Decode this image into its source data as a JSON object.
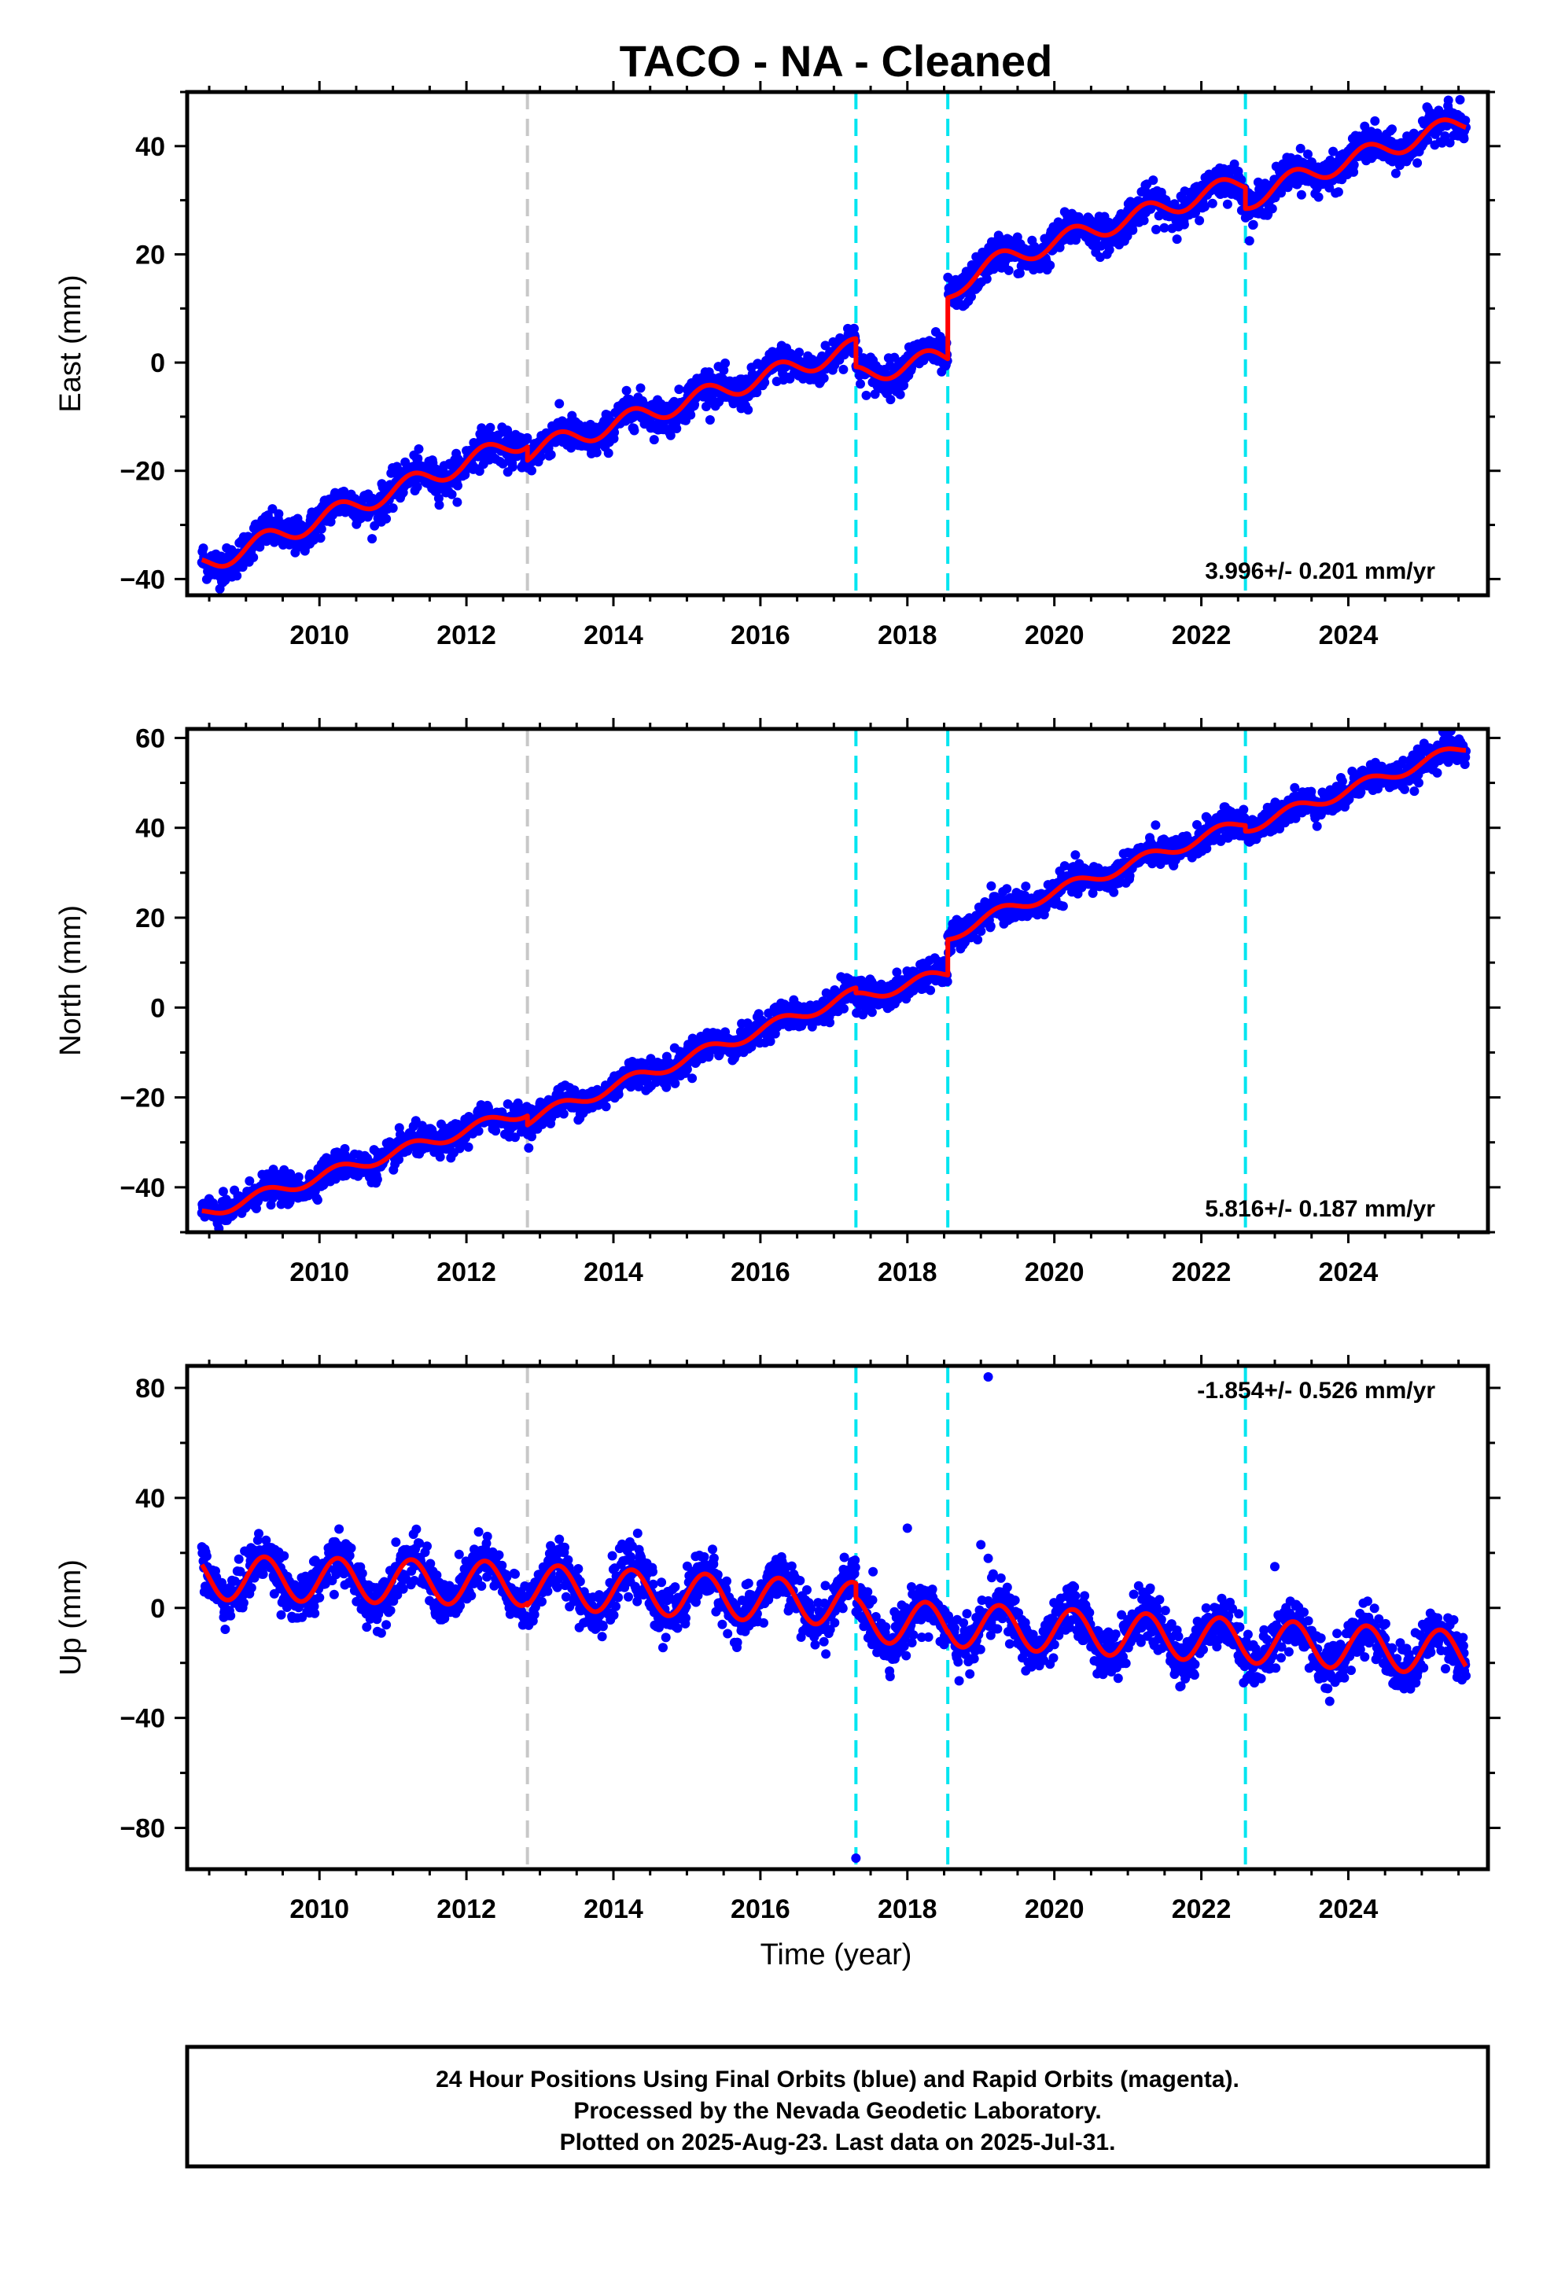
{
  "title": "TACO  - NA - Cleaned",
  "colors": {
    "final": "#0000ff",
    "model": "#ff0000",
    "cyan": "#00e5f0",
    "gray": "#c8c8c8"
  },
  "chart_data": [
    {
      "type": "scatter",
      "ylabel": "East (mm)",
      "xlabel": "",
      "xlim": [
        2008.2,
        2025.9
      ],
      "ylim": [
        -43,
        50
      ],
      "xticks": [
        2010,
        2012,
        2014,
        2016,
        2018,
        2020,
        2022,
        2024
      ],
      "xtick_labels": [
        "2010",
        "2012",
        "2014",
        "2016",
        "2018",
        "2020",
        "2022",
        "2024"
      ],
      "yticks": [
        -40,
        -20,
        0,
        20,
        40
      ],
      "ytick_labels": [
        "−40",
        "−20",
        "0",
        "20",
        "40"
      ],
      "rate_label": "3.996+/- 0.201 mm/yr",
      "rate_position": "bottom-right",
      "gray_lines": [
        2012.83
      ],
      "cyan_lines": [
        2017.3,
        2018.55,
        2022.6
      ],
      "model": {
        "color": "#ff0000",
        "breaks": [
          2012.83,
          2017.3,
          2018.55,
          2022.6
        ],
        "segments": [
          {
            "from": 2008.4,
            "to": 2012.83,
            "anchor": 2008.4,
            "value": -37.5,
            "rate": 5.3,
            "annual": 1.8,
            "phase": 0.0,
            "decay": 0
          },
          {
            "from": 2012.83,
            "to": 2017.3,
            "anchor": 2012.83,
            "value": -16.5,
            "rate": 4.3,
            "annual": 1.8,
            "phase": 0.0,
            "decay": 0
          },
          {
            "from": 2017.3,
            "to": 2018.55,
            "anchor": 2017.3,
            "value": -2.5,
            "rate": 3.0,
            "annual": 1.8,
            "phase": 0.0,
            "decay": 0
          },
          {
            "from": 2018.55,
            "to": 2022.6,
            "anchor": 2018.55,
            "value": 12.5,
            "rate": 4.3,
            "annual": 1.8,
            "phase": 0.0,
            "decay": 3.5
          },
          {
            "from": 2022.6,
            "to": 2025.6,
            "anchor": 2022.6,
            "value": 29.5,
            "rate": 4.5,
            "annual": 1.8,
            "phase": 0.0,
            "decay": 1.5
          }
        ]
      },
      "observations": {
        "from": 2008.4,
        "to": 2025.6,
        "count": 2600,
        "scatter": 1.6
      }
    },
    {
      "type": "scatter",
      "ylabel": "North (mm)",
      "xlabel": "",
      "xlim": [
        2008.2,
        2025.9
      ],
      "ylim": [
        -50,
        62
      ],
      "xticks": [
        2010,
        2012,
        2014,
        2016,
        2018,
        2020,
        2022,
        2024
      ],
      "xtick_labels": [
        "2010",
        "2012",
        "2014",
        "2016",
        "2018",
        "2020",
        "2022",
        "2024"
      ],
      "yticks": [
        -40,
        -20,
        0,
        20,
        40,
        60
      ],
      "ytick_labels": [
        "−40",
        "−20",
        "0",
        "20",
        "40",
        "60"
      ],
      "rate_label": "5.816+/- 0.187 mm/yr",
      "rate_position": "bottom-right",
      "gray_lines": [
        2012.83
      ],
      "cyan_lines": [
        2017.3,
        2018.55,
        2022.6
      ],
      "model": {
        "color": "#ff0000",
        "breaks": [
          2012.83,
          2017.3,
          2018.55,
          2022.6
        ],
        "segments": [
          {
            "from": 2008.4,
            "to": 2012.83,
            "anchor": 2008.4,
            "value": -46,
            "rate": 5.2,
            "annual": 1.3,
            "phase": 0.0,
            "decay": 0
          },
          {
            "from": 2012.83,
            "to": 2017.3,
            "anchor": 2012.83,
            "value": -25,
            "rate": 6.3,
            "annual": 1.3,
            "phase": 0.0,
            "decay": 0
          },
          {
            "from": 2017.3,
            "to": 2018.55,
            "anchor": 2017.3,
            "value": 2,
            "rate": 4.5,
            "annual": 1.3,
            "phase": 0.0,
            "decay": 0
          },
          {
            "from": 2018.55,
            "to": 2022.6,
            "anchor": 2018.55,
            "value": 15.5,
            "rate": 6.0,
            "annual": 1.3,
            "phase": 0.0,
            "decay": 1.5
          },
          {
            "from": 2022.6,
            "to": 2025.6,
            "anchor": 2022.6,
            "value": 40,
            "rate": 6.0,
            "annual": 1.3,
            "phase": 0.0,
            "decay": 0
          }
        ]
      },
      "observations": {
        "from": 2008.4,
        "to": 2025.6,
        "count": 2600,
        "scatter": 1.6
      }
    },
    {
      "type": "scatter",
      "ylabel": "Up (mm)",
      "xlabel": "Time (year)",
      "xlim": [
        2008.2,
        2025.9
      ],
      "ylim": [
        -95,
        88
      ],
      "xticks": [
        2010,
        2012,
        2014,
        2016,
        2018,
        2020,
        2022,
        2024
      ],
      "xtick_labels": [
        "2010",
        "2012",
        "2014",
        "2016",
        "2018",
        "2020",
        "2022",
        "2024"
      ],
      "yticks": [
        -80,
        -40,
        0,
        40,
        80
      ],
      "ytick_labels": [
        "−80",
        "−40",
        "0",
        "40",
        "80"
      ],
      "rate_label": "-1.854+/- 0.526 mm/yr",
      "rate_position": "top-right",
      "gray_lines": [
        2012.83
      ],
      "cyan_lines": [
        2017.3,
        2018.55,
        2022.6
      ],
      "model": {
        "color": "#ff0000",
        "breaks": [
          2012.83,
          2017.3,
          2018.55,
          2022.6
        ],
        "segments": [
          {
            "from": 2008.4,
            "to": 2012.83,
            "anchor": 2008.4,
            "value": 11,
            "rate": -0.5,
            "annual": 8,
            "phase": 0.0,
            "decay": 0
          },
          {
            "from": 2012.83,
            "to": 2017.3,
            "anchor": 2012.83,
            "value": 8,
            "rate": -1.5,
            "annual": 8,
            "phase": 0.0,
            "decay": 0
          },
          {
            "from": 2017.3,
            "to": 2018.55,
            "anchor": 2017.3,
            "value": -4,
            "rate": -2.0,
            "annual": 8,
            "phase": 0.0,
            "decay": 0
          },
          {
            "from": 2018.55,
            "to": 2022.6,
            "anchor": 2018.55,
            "value": -6,
            "rate": -1.5,
            "annual": 8,
            "phase": 0.0,
            "decay": 0
          },
          {
            "from": 2022.6,
            "to": 2025.6,
            "anchor": 2022.6,
            "value": -12,
            "rate": -1.5,
            "annual": 8,
            "phase": 0.0,
            "decay": 0
          }
        ]
      },
      "observations": {
        "from": 2008.4,
        "to": 2025.6,
        "count": 2600,
        "scatter": 4.5
      },
      "outliers": [
        [
          2017.3,
          -91
        ],
        [
          2019.1,
          84
        ],
        [
          2018.0,
          29
        ],
        [
          2019.0,
          23
        ],
        [
          2019.1,
          18
        ],
        [
          2023.0,
          15
        ]
      ]
    }
  ],
  "footer": {
    "line1": "24 Hour Positions Using Final Orbits (blue) and Rapid Orbits (magenta).",
    "line2": "Processed by the Nevada Geodetic Laboratory.",
    "line3": "Plotted on 2025-Aug-23. Last data on 2025-Jul-31."
  }
}
